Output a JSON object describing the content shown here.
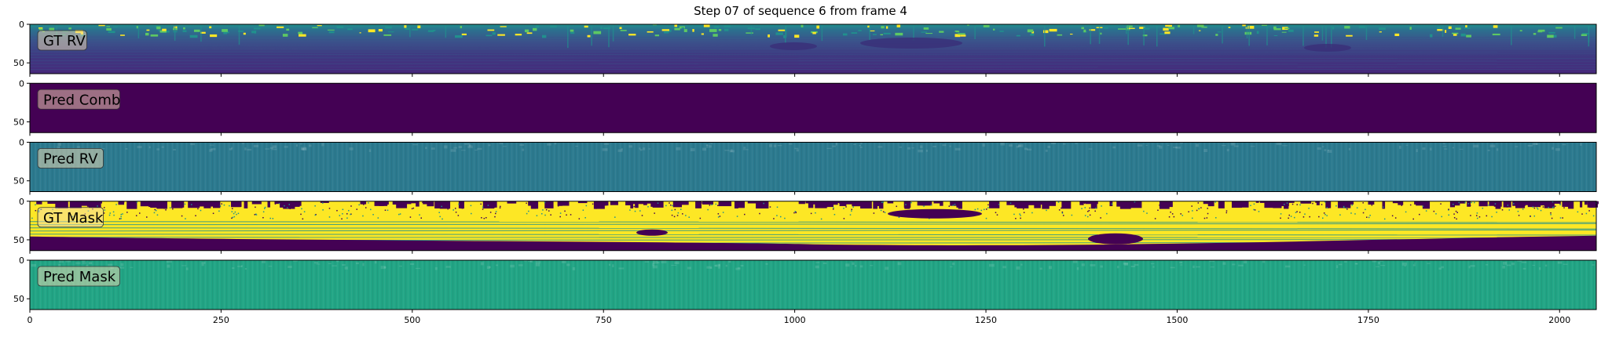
{
  "figure": {
    "title": "Step 07 of sequence 6 from frame 4"
  },
  "chart_data": [
    {
      "type": "heatmap",
      "label": "GT RV",
      "render": "range-view",
      "xlim": [
        0,
        2048
      ],
      "ylim": [
        64,
        0
      ],
      "yticks": [
        0,
        50
      ],
      "xticks_labeled": false
    },
    {
      "type": "heatmap",
      "label": "Pred Comb",
      "render": "uniform",
      "fill": "#440154",
      "xlim": [
        0,
        2048
      ],
      "ylim": [
        64,
        0
      ],
      "yticks": [
        0,
        50
      ],
      "xticks_labeled": false
    },
    {
      "type": "heatmap",
      "label": "Pred RV",
      "render": "noise",
      "fill": "#2c7a8f",
      "xlim": [
        0,
        2048
      ],
      "ylim": [
        64,
        0
      ],
      "yticks": [
        0,
        50
      ],
      "xticks_labeled": false
    },
    {
      "type": "heatmap",
      "label": "GT Mask",
      "render": "mask",
      "xlim": [
        0,
        2048
      ],
      "ylim": [
        64,
        0
      ],
      "yticks": [
        0,
        50
      ],
      "xticks_labeled": false
    },
    {
      "type": "heatmap",
      "label": "Pred Mask",
      "render": "noise",
      "fill": "#22a585",
      "xlim": [
        0,
        2048
      ],
      "ylim": [
        64,
        0
      ],
      "yticks": [
        0,
        50
      ],
      "xticks_labeled": true
    }
  ],
  "xticks": [
    0,
    250,
    500,
    750,
    1000,
    1250,
    1500,
    1750,
    2000
  ],
  "colormap": {
    "name": "viridis",
    "dark": "#440154",
    "blue": "#3b528b",
    "teal": "#21908d",
    "green": "#5dc863",
    "yellow": "#fde725"
  }
}
